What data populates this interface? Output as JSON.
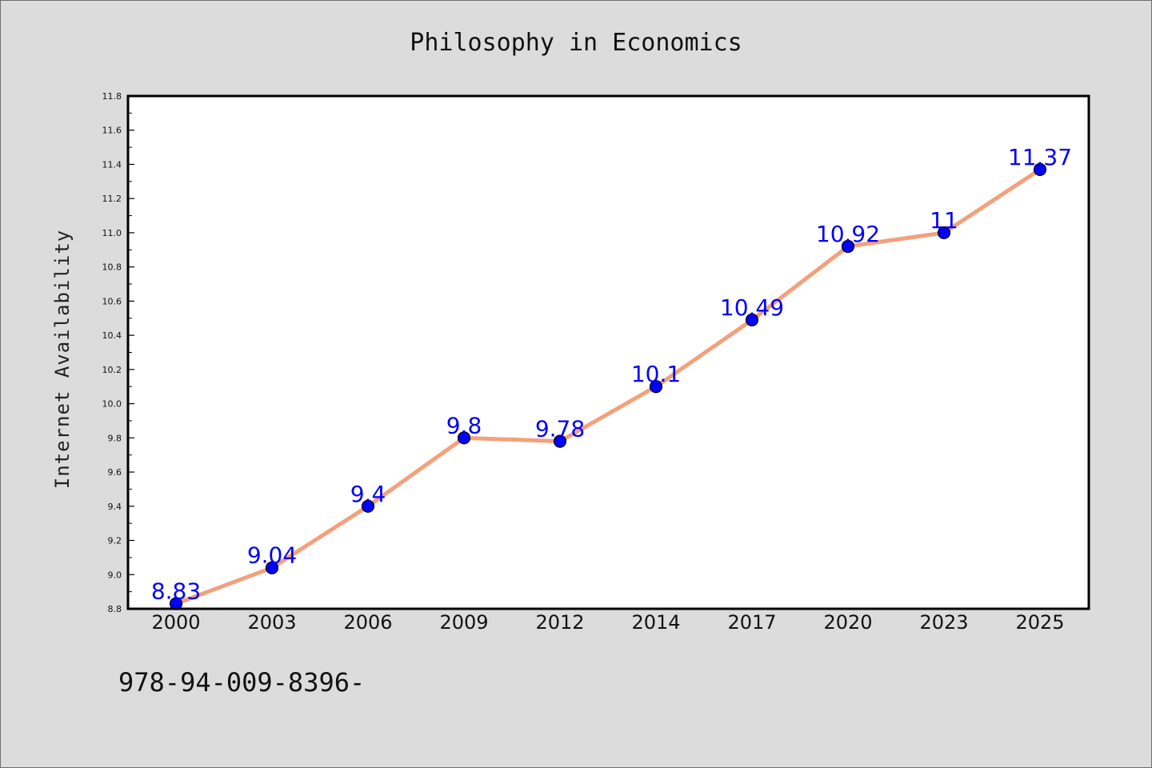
{
  "chart_data": {
    "type": "line",
    "title": "Philosophy in Economics",
    "xlabel": "",
    "ylabel": "Internet Availability",
    "categories": [
      "2000",
      "2003",
      "2006",
      "2009",
      "2012",
      "2014",
      "2017",
      "2020",
      "2023",
      "2025"
    ],
    "series": [
      {
        "values": [
          8.83,
          9.04,
          9.4,
          9.8,
          9.78,
          10.1,
          10.49,
          10.92,
          11,
          11.37
        ],
        "labels": [
          "8.83",
          "9.04",
          "9.4",
          "9.8",
          "9.78",
          "10.1",
          "10.49",
          "10.92",
          "11",
          "11.37"
        ]
      }
    ],
    "ylim": [
      8.8,
      11.8
    ],
    "yticks": [
      "8.8",
      "9.0",
      "9.2",
      "9.4",
      "9.6",
      "9.8",
      "10.0",
      "10.2",
      "10.4",
      "10.6",
      "10.8",
      "11.0",
      "11.2",
      "11.4",
      "11.6",
      "11.8"
    ],
    "grid": false,
    "legend": "none",
    "colors": {
      "line": "#f4a07a",
      "marker": "#0000ff",
      "label": "#0000ff",
      "background": "#dcdcdc",
      "plot_background": "#ffffff"
    }
  },
  "footer": {
    "text": "978-94-009-8396-"
  }
}
